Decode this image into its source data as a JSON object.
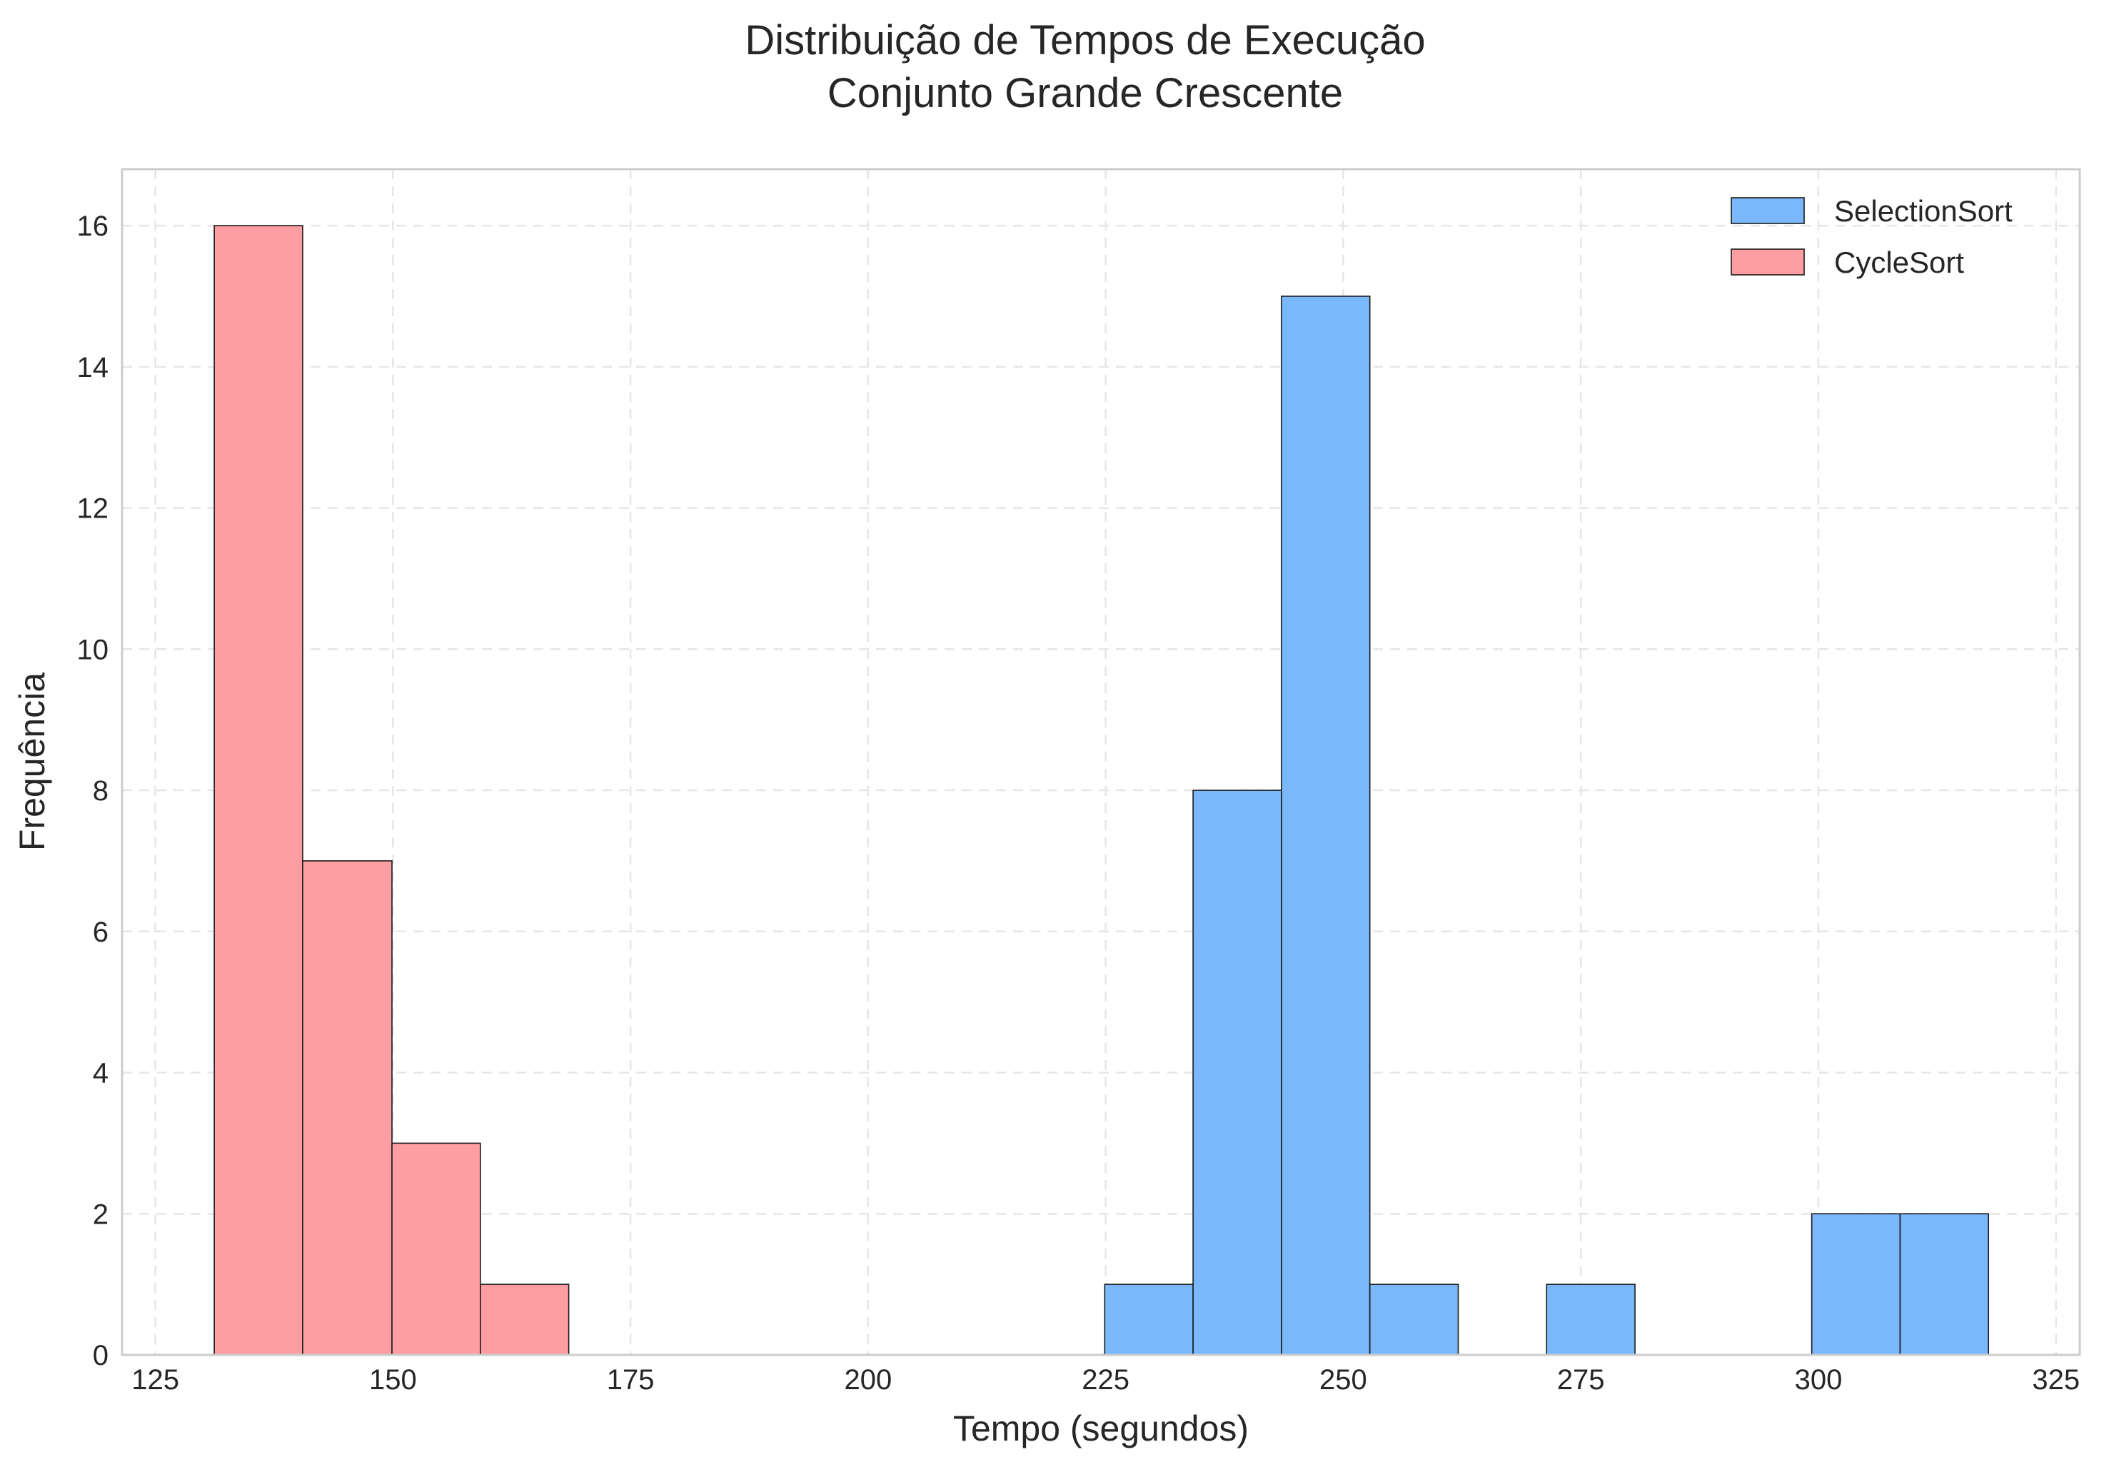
{
  "chart_data": {
    "type": "bar",
    "title": "Distribuição de Tempos de Execução",
    "subtitle": "Conjunto Grande Crescente",
    "xlabel": "Tempo (segundos)",
    "ylabel": "Frequência",
    "xlim": [
      121.5,
      327.5
    ],
    "ylim": [
      0,
      16.8
    ],
    "xticks": [
      125,
      150,
      175,
      200,
      225,
      250,
      275,
      300,
      325
    ],
    "yticks": [
      0,
      2,
      4,
      6,
      8,
      10,
      12,
      14,
      16
    ],
    "grid": true,
    "legend_position": "top-right",
    "series": [
      {
        "name": "SelectionSort",
        "color": "#7ab8fb",
        "bins": [
          {
            "x0": 224.9,
            "x1": 234.2,
            "count": 1
          },
          {
            "x0": 234.2,
            "x1": 243.5,
            "count": 8
          },
          {
            "x0": 243.5,
            "x1": 252.8,
            "count": 15
          },
          {
            "x0": 252.8,
            "x1": 262.1,
            "count": 1
          },
          {
            "x0": 271.4,
            "x1": 280.7,
            "count": 1
          },
          {
            "x0": 299.3,
            "x1": 308.6,
            "count": 2
          },
          {
            "x0": 308.6,
            "x1": 317.9,
            "count": 2
          }
        ]
      },
      {
        "name": "CycleSort",
        "color": "#fe9ea3",
        "bins": [
          {
            "x0": 131.2,
            "x1": 140.5,
            "count": 16
          },
          {
            "x0": 140.5,
            "x1": 149.9,
            "count": 7
          },
          {
            "x0": 149.9,
            "x1": 159.2,
            "count": 3
          },
          {
            "x0": 159.2,
            "x1": 168.5,
            "count": 1
          }
        ]
      }
    ]
  }
}
